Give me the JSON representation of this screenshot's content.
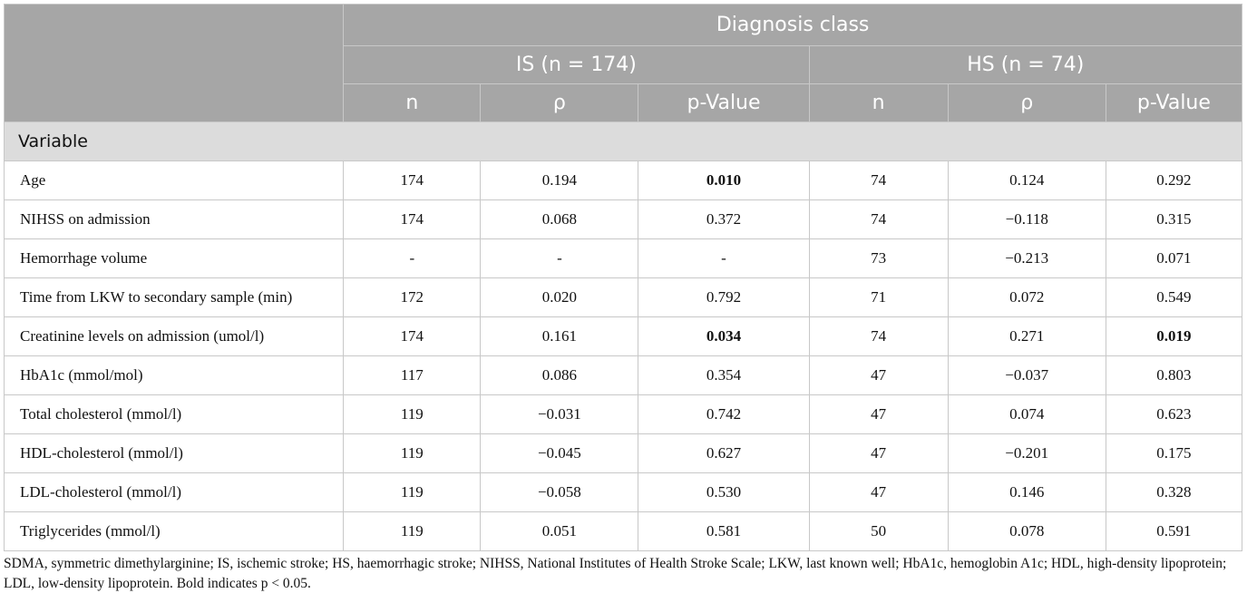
{
  "header": {
    "group": "Diagnosis class",
    "is_group": "IS (n = 174)",
    "hs_group": "HS (n = 74)",
    "cols": [
      "n",
      "ρ",
      "p-Value",
      "n",
      "ρ",
      "p-Value"
    ]
  },
  "section_label": "Variable",
  "rows": [
    {
      "label": "Age",
      "cells": [
        "174",
        "0.194",
        "0.010",
        "74",
        "0.124",
        "0.292"
      ],
      "bold": [
        false,
        false,
        true,
        false,
        false,
        false
      ]
    },
    {
      "label": "NIHSS on admission",
      "cells": [
        "174",
        "0.068",
        "0.372",
        "74",
        "−0.118",
        "0.315"
      ],
      "bold": [
        false,
        false,
        false,
        false,
        false,
        false
      ]
    },
    {
      "label": "Hemorrhage volume",
      "cells": [
        "-",
        "-",
        "-",
        "73",
        "−0.213",
        "0.071"
      ],
      "bold": [
        false,
        false,
        false,
        false,
        false,
        false
      ]
    },
    {
      "label": "Time from LKW to secondary sample (min)",
      "cells": [
        "172",
        "0.020",
        "0.792",
        "71",
        "0.072",
        "0.549"
      ],
      "bold": [
        false,
        false,
        false,
        false,
        false,
        false
      ]
    },
    {
      "label": "Creatinine levels on admission (umol/l)",
      "cells": [
        "174",
        "0.161",
        "0.034",
        "74",
        "0.271",
        "0.019"
      ],
      "bold": [
        false,
        false,
        true,
        false,
        false,
        true
      ]
    },
    {
      "label": "HbA1c (mmol/mol)",
      "cells": [
        "117",
        "0.086",
        "0.354",
        "47",
        "−0.037",
        "0.803"
      ],
      "bold": [
        false,
        false,
        false,
        false,
        false,
        false
      ]
    },
    {
      "label": "Total cholesterol (mmol/l)",
      "cells": [
        "119",
        "−0.031",
        "0.742",
        "47",
        "0.074",
        "0.623"
      ],
      "bold": [
        false,
        false,
        false,
        false,
        false,
        false
      ]
    },
    {
      "label": "HDL-cholesterol (mmol/l)",
      "cells": [
        "119",
        "−0.045",
        "0.627",
        "47",
        "−0.201",
        "0.175"
      ],
      "bold": [
        false,
        false,
        false,
        false,
        false,
        false
      ]
    },
    {
      "label": "LDL-cholesterol (mmol/l)",
      "cells": [
        "119",
        "−0.058",
        "0.530",
        "47",
        "0.146",
        "0.328"
      ],
      "bold": [
        false,
        false,
        false,
        false,
        false,
        false
      ]
    },
    {
      "label": "Triglycerides (mmol/l)",
      "cells": [
        "119",
        "0.051",
        "0.581",
        "50",
        "0.078",
        "0.591"
      ],
      "bold": [
        false,
        false,
        false,
        false,
        false,
        false
      ]
    }
  ],
  "footnote": "SDMA, symmetric dimethylarginine; IS, ischemic stroke; HS, haemorrhagic stroke; NIHSS, National Institutes of Health Stroke Scale; LKW, last known well; HbA1c, hemoglobin A1c; HDL, high-density lipoprotein; LDL, low-density lipoprotein. Bold indicates p < 0.05."
}
